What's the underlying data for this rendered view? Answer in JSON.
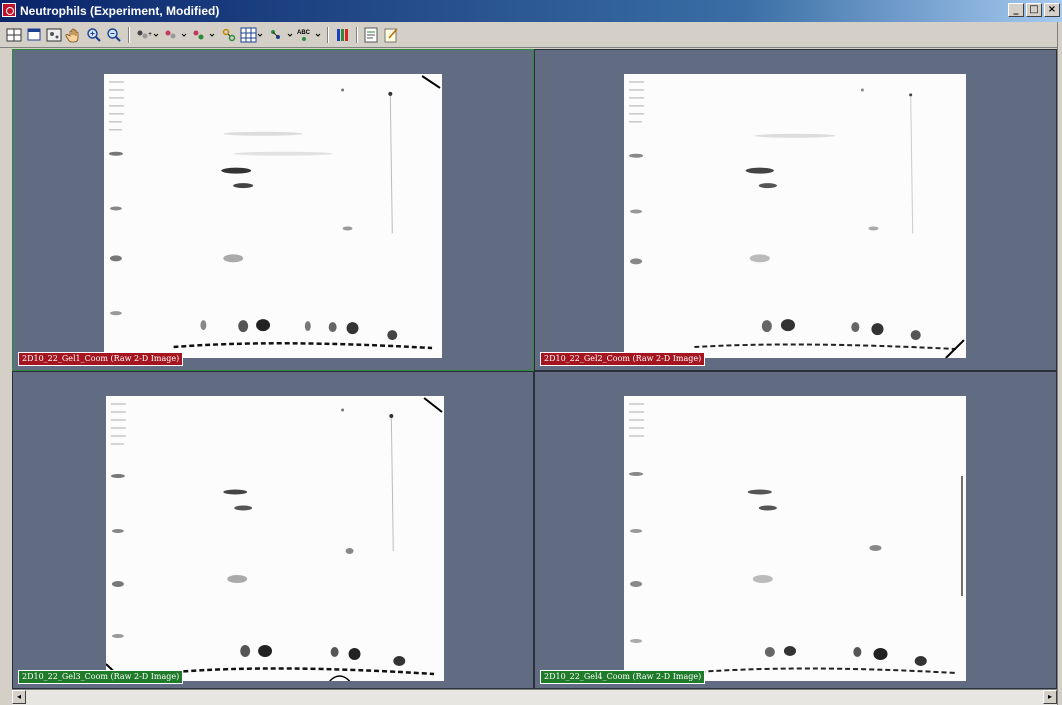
{
  "window": {
    "title": "Neutrophils (Experiment, Modified)",
    "minimize_label": "_",
    "restore_label": "□",
    "close_label": "×"
  },
  "toolbar": {
    "buttons": [
      "layout-grid-icon",
      "single-view-icon",
      "image-properties-icon",
      "pan-hand-icon",
      "zoom-in-icon",
      "zoom-out-icon",
      "spot-detect-icon",
      "spot-edit-icon",
      "spot-match-icon",
      "spot-link-icon",
      "grid-view-icon",
      "landmark-icon",
      "label-abc-icon",
      "color-bars-icon",
      "report-icon",
      "notes-icon"
    ]
  },
  "panes": [
    {
      "caption": "2D10_22_Gel1_Coom (Raw 2-D Image)",
      "caption_color": "#a4151f",
      "active": true
    },
    {
      "caption": "2D10_22_Gel2_Coom (Raw 2-D Image)",
      "caption_color": "#a4151f",
      "active": false
    },
    {
      "caption": "2D10_22_Gel3_Coom (Raw 2-D Image)",
      "caption_color": "#1f7a2a",
      "active": false
    },
    {
      "caption": "2D10_22_Gel4_Coom (Raw 2-D Image)",
      "caption_color": "#1f7a2a",
      "active": false
    }
  ],
  "colors": {
    "workspace_bg": "#616c83",
    "active_pane_border": "#2e8b3a"
  },
  "scrollbars": {
    "left_arrow": "◂",
    "right_arrow": "▸"
  }
}
